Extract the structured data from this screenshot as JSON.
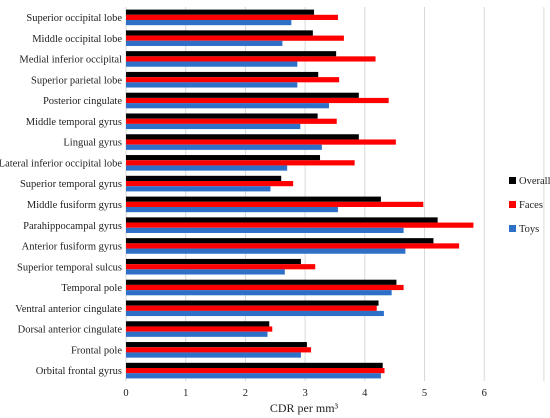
{
  "chart_data": {
    "type": "bar",
    "orientation": "horizontal",
    "categories": [
      "Superior occipital lobe",
      "Middle occipital lobe",
      "Medial inferior occipital",
      "Superior parietal lobe",
      "Posterior cingulate",
      "Middle temporal gyrus",
      "Lingual gyrus",
      "Lateral inferior occipital lobe",
      "Superior temporal gyrus",
      "Middle fusiform gyrus",
      "Parahippocampal gyrus",
      "Anterior fusiform gyrus",
      "Superior temporal sulcus",
      "Temporal pole",
      "Ventral anterior cingulate",
      "Dorsal anterior cingulate",
      "Frontal pole",
      "Orbital frontal gyrus"
    ],
    "series": [
      {
        "name": "Overall",
        "color": "#000000",
        "values": [
          3.15,
          3.13,
          3.52,
          3.22,
          3.9,
          3.21,
          3.9,
          3.25,
          2.6,
          4.27,
          5.22,
          5.15,
          2.93,
          4.53,
          4.23,
          2.4,
          3.03,
          4.3
        ]
      },
      {
        "name": "Faces",
        "color": "#ff0000",
        "values": [
          3.55,
          3.65,
          4.18,
          3.57,
          4.4,
          3.53,
          4.52,
          3.83,
          2.8,
          4.98,
          5.82,
          5.58,
          3.17,
          4.65,
          4.2,
          2.45,
          3.1,
          4.33
        ]
      },
      {
        "name": "Toys",
        "color": "#2e6fc7",
        "values": [
          2.77,
          2.62,
          2.87,
          2.87,
          3.4,
          2.92,
          3.28,
          2.7,
          2.42,
          3.55,
          4.65,
          4.68,
          2.66,
          4.45,
          4.32,
          2.37,
          2.93,
          4.27
        ]
      }
    ],
    "xlabel": "CDR per mm³",
    "ylabel": "",
    "xlim": [
      0,
      7
    ],
    "xticks": [
      0,
      1,
      2,
      3,
      4,
      5,
      6
    ],
    "grid": "vertical",
    "legend": {
      "position": "right",
      "order": [
        "Overall",
        "Faces",
        "Toys"
      ]
    }
  }
}
